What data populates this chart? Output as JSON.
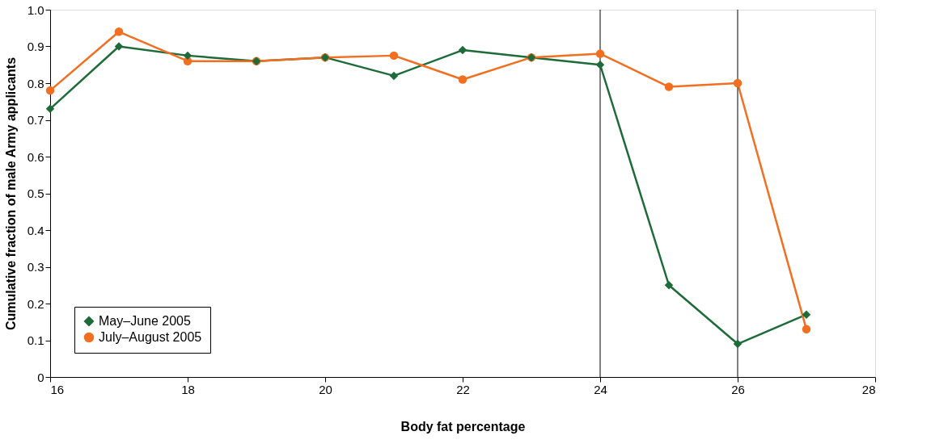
{
  "chart_data": {
    "type": "line",
    "xlabel": "Body fat percentage",
    "ylabel": "Cumulative fraction of male Army applicants",
    "x": [
      16,
      17,
      18,
      19,
      20,
      21,
      22,
      23,
      24,
      25,
      26,
      27
    ],
    "series": [
      {
        "name": "May–June 2005",
        "color": "#1e6b3a",
        "marker": "diamond",
        "values": [
          0.73,
          0.9,
          0.875,
          0.86,
          0.87,
          0.82,
          0.89,
          0.87,
          0.85,
          0.25,
          0.09,
          0.17
        ]
      },
      {
        "name": "July–August 2005",
        "color": "#f26f21",
        "marker": "circle",
        "values": [
          0.78,
          0.94,
          0.86,
          0.86,
          0.87,
          0.875,
          0.81,
          0.87,
          0.88,
          0.79,
          0.8,
          0.13
        ]
      }
    ],
    "xlim": [
      16,
      28
    ],
    "xticks": [
      16,
      18,
      20,
      22,
      24,
      26,
      28
    ],
    "ylim": [
      0,
      1
    ],
    "yticks": [
      0,
      0.1,
      0.2,
      0.3,
      0.4,
      0.5,
      0.6,
      0.7,
      0.8,
      0.9,
      {
        "value": 1,
        "label": "1.0"
      }
    ],
    "ref_lines": [
      {
        "axis": "x",
        "value": 24,
        "color": "#000000"
      },
      {
        "axis": "x",
        "value": 26,
        "color": "#000000"
      }
    ],
    "grid": false,
    "legend": "bottom left",
    "line_style": "solid"
  }
}
